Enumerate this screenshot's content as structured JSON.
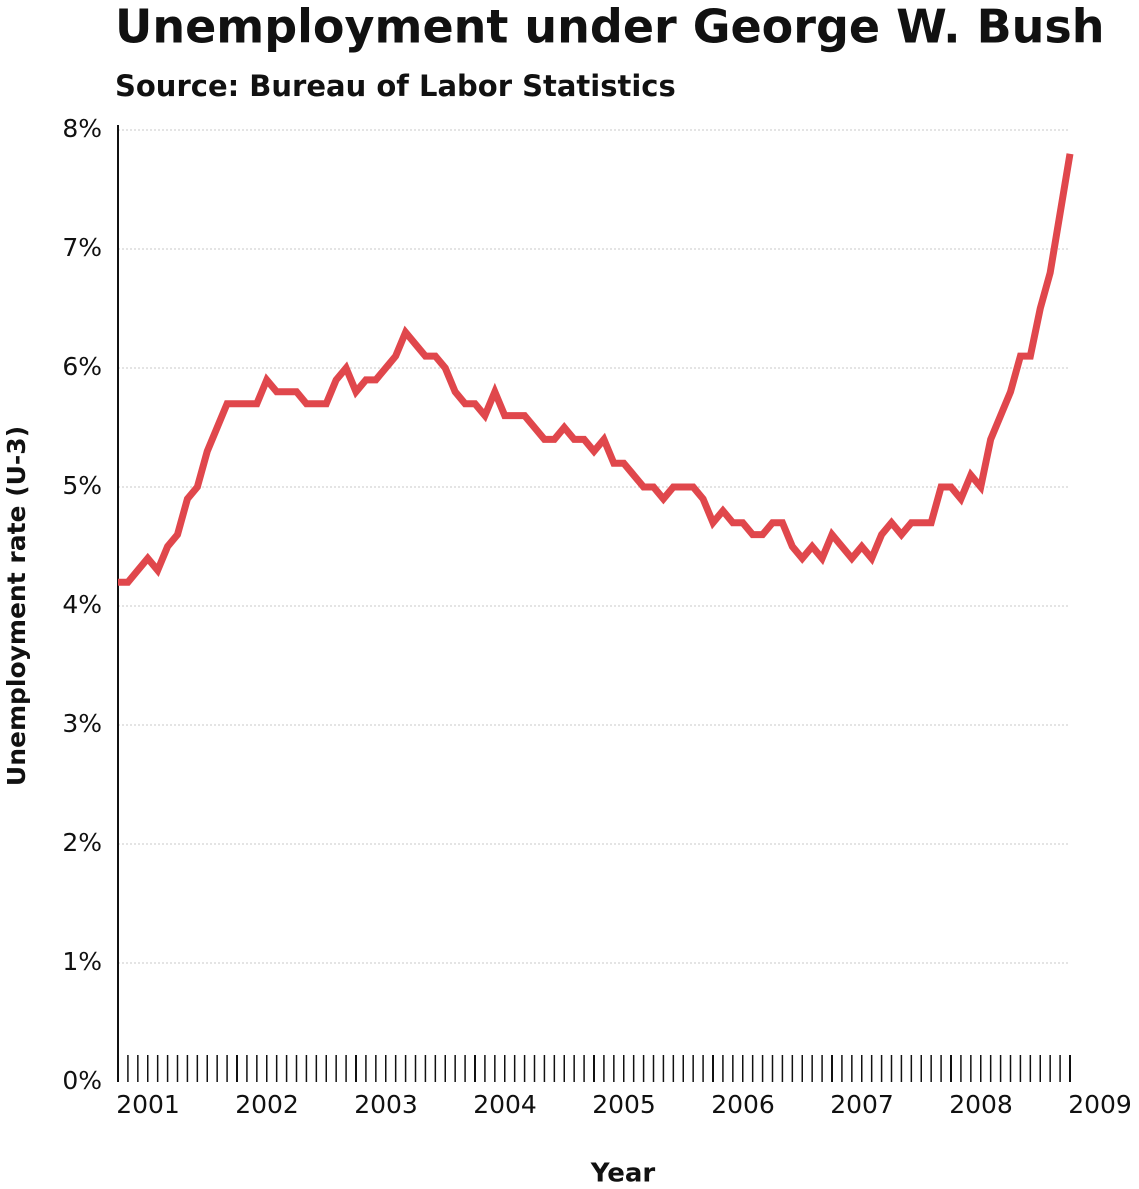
{
  "chart_data": {
    "type": "line",
    "title": "Unemployment under George W. Bush",
    "subtitle": "Source: Bureau of Labor Statistics",
    "x_label": "Year",
    "y_label": "Unemployment rate (U-3)",
    "x": [
      2001,
      2001.0833,
      2001.1667,
      2001.25,
      2001.3333,
      2001.4167,
      2001.5,
      2001.5833,
      2001.6667,
      2001.75,
      2001.8333,
      2001.9167,
      2002,
      2002.0833,
      2002.1667,
      2002.25,
      2002.3333,
      2002.4167,
      2002.5,
      2002.5833,
      2002.6667,
      2002.75,
      2002.8333,
      2002.9167,
      2003,
      2003.0833,
      2003.1667,
      2003.25,
      2003.3333,
      2003.4167,
      2003.5,
      2003.5833,
      2003.6667,
      2003.75,
      2003.8333,
      2003.9167,
      2004,
      2004.0833,
      2004.1667,
      2004.25,
      2004.3333,
      2004.4167,
      2004.5,
      2004.5833,
      2004.6667,
      2004.75,
      2004.8333,
      2004.9167,
      2005,
      2005.0833,
      2005.1667,
      2005.25,
      2005.3333,
      2005.4167,
      2005.5,
      2005.5833,
      2005.6667,
      2005.75,
      2005.8333,
      2005.9167,
      2006,
      2006.0833,
      2006.1667,
      2006.25,
      2006.3333,
      2006.4167,
      2006.5,
      2006.5833,
      2006.6667,
      2006.75,
      2006.8333,
      2006.9167,
      2007,
      2007.0833,
      2007.1667,
      2007.25,
      2007.3333,
      2007.4167,
      2007.5,
      2007.5833,
      2007.6667,
      2007.75,
      2007.8333,
      2007.9167,
      2008,
      2008.0833,
      2008.1667,
      2008.25,
      2008.3333,
      2008.4167,
      2008.5,
      2008.5833,
      2008.6667,
      2008.75,
      2008.8333,
      2008.9167,
      2009
    ],
    "series": [
      {
        "name": "Unemployment rate",
        "color": "#e0474c",
        "values": [
          4.2,
          4.2,
          4.3,
          4.4,
          4.3,
          4.5,
          4.6,
          4.9,
          5.0,
          5.3,
          5.5,
          5.7,
          5.7,
          5.7,
          5.7,
          5.9,
          5.8,
          5.8,
          5.8,
          5.7,
          5.7,
          5.7,
          5.9,
          6.0,
          5.8,
          5.9,
          5.9,
          6.0,
          6.1,
          6.3,
          6.2,
          6.1,
          6.1,
          6.0,
          5.8,
          5.7,
          5.7,
          5.6,
          5.8,
          5.6,
          5.6,
          5.6,
          5.5,
          5.4,
          5.4,
          5.5,
          5.4,
          5.4,
          5.3,
          5.4,
          5.2,
          5.2,
          5.1,
          5.0,
          5.0,
          4.9,
          5.0,
          5.0,
          5.0,
          4.9,
          4.7,
          4.8,
          4.7,
          4.7,
          4.6,
          4.6,
          4.7,
          4.7,
          4.5,
          4.4,
          4.5,
          4.4,
          4.6,
          4.5,
          4.4,
          4.5,
          4.4,
          4.6,
          4.7,
          4.6,
          4.7,
          4.7,
          4.7,
          5.0,
          5.0,
          4.9,
          5.1,
          5.0,
          5.4,
          5.6,
          5.8,
          6.1,
          6.1,
          6.5,
          6.8,
          7.3,
          7.8
        ]
      }
    ],
    "xlim": [
      2001,
      2009
    ],
    "xticks": [
      2001,
      2002,
      2003,
      2004,
      2005,
      2006,
      2007,
      2008,
      2009
    ],
    "ylim": [
      0,
      8
    ],
    "yticks": [
      {
        "value": 0,
        "label": "0%"
      },
      {
        "value": 1,
        "label": "1%"
      },
      {
        "value": 2,
        "label": "2%"
      },
      {
        "value": 3,
        "label": "3%"
      },
      {
        "value": 4,
        "label": "4%"
      },
      {
        "value": 5,
        "label": "5%"
      },
      {
        "value": 6,
        "label": "6%"
      },
      {
        "value": 7,
        "label": "7%"
      },
      {
        "value": 8,
        "label": "8%"
      }
    ],
    "grid": true
  }
}
